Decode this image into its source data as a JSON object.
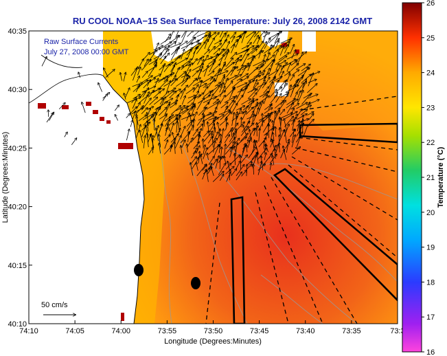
{
  "title": "RU COOL  NOAA−15  Sea Surface Temperature:  July 26, 2008 2142 GMT",
  "overlay": {
    "line1": "Raw Surface Currents",
    "line2": "July 27, 2008 00:00 GMT",
    "scale_label": "50 cm/s"
  },
  "axes": {
    "xlabel": "Longitude (Degrees:Minutes)",
    "ylabel": "Latitude (Degrees:Minutes)",
    "xticks": [
      "74:10",
      "74:05",
      "74:00",
      "73:55",
      "73:50",
      "73:45",
      "73:40",
      "73:35",
      "73:3"
    ],
    "yticks": [
      "40:35",
      "40:30",
      "40:25",
      "40:20",
      "40:15",
      "40:10"
    ]
  },
  "colorbar": {
    "label": "Temperature (°C)",
    "ticks": [
      "26",
      "25",
      "24",
      "23",
      "22",
      "21",
      "20",
      "19",
      "18",
      "17",
      "16"
    ],
    "min": 16,
    "max": 26
  },
  "colors": {
    "title": "#1a23a8",
    "land": "#ffffff",
    "cloud_mask": "#b00000",
    "warm": "#e02a1a",
    "mid": "#ff9a00",
    "cool": "#ffd400"
  }
}
